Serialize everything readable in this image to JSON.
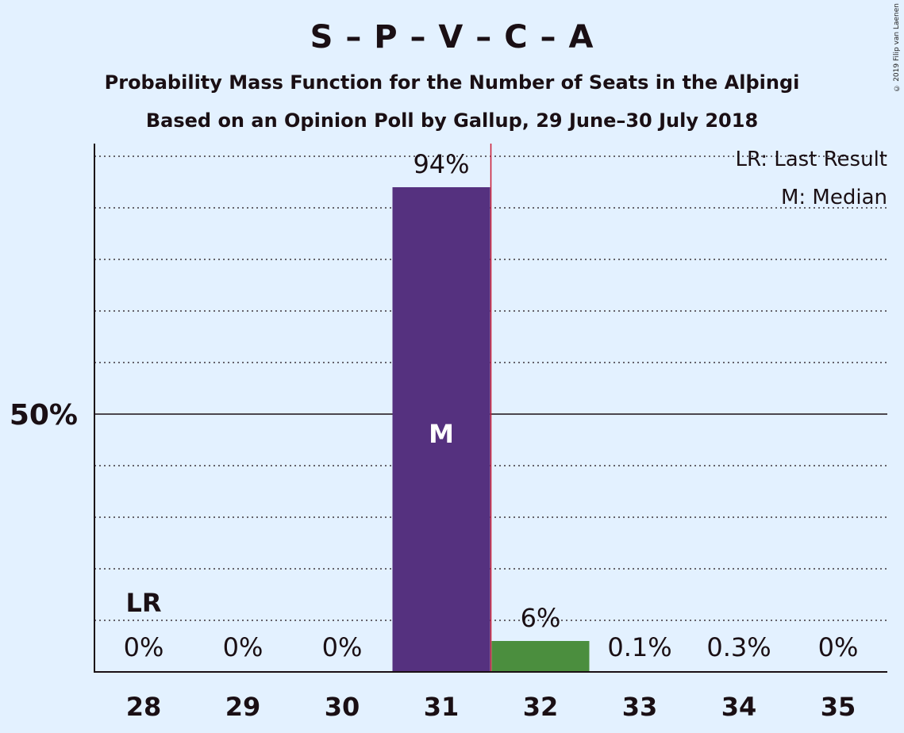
{
  "title": "S – P – V – C – A",
  "subtitle1": "Probability Mass Function for the Number of Seats in the Alþingi",
  "subtitle2": "Based on an Opinion Poll by Gallup, 29 June–30 July 2018",
  "copyright": "© 2019 Filip van Laenen",
  "legend": {
    "last_result": "LR: Last Result",
    "median": "M: Median"
  },
  "chart_data": {
    "type": "bar",
    "categories": [
      "28",
      "29",
      "30",
      "31",
      "32",
      "33",
      "34",
      "35"
    ],
    "values": [
      0,
      0,
      0,
      94,
      6,
      0.1,
      0.3,
      0
    ],
    "value_labels": [
      "0%",
      "0%",
      "0%",
      "94%",
      "6%",
      "0.1%",
      "0.3%",
      "0%"
    ],
    "bar_colors": [
      "#55317f",
      "#55317f",
      "#55317f",
      "#55317f",
      "#4b8e3e",
      "#4b8e3e",
      "#4b8e3e",
      "#4b8e3e"
    ],
    "ylim": [
      0,
      102
    ],
    "ytick_label": "50%",
    "ytick_value": 50,
    "gridline_step": 10,
    "median_category": "31",
    "median_marker": "M",
    "last_result_category": "28",
    "last_result_marker": "LR",
    "majority_line_after_category": "31",
    "majority_line_color": "#cc1a33"
  }
}
